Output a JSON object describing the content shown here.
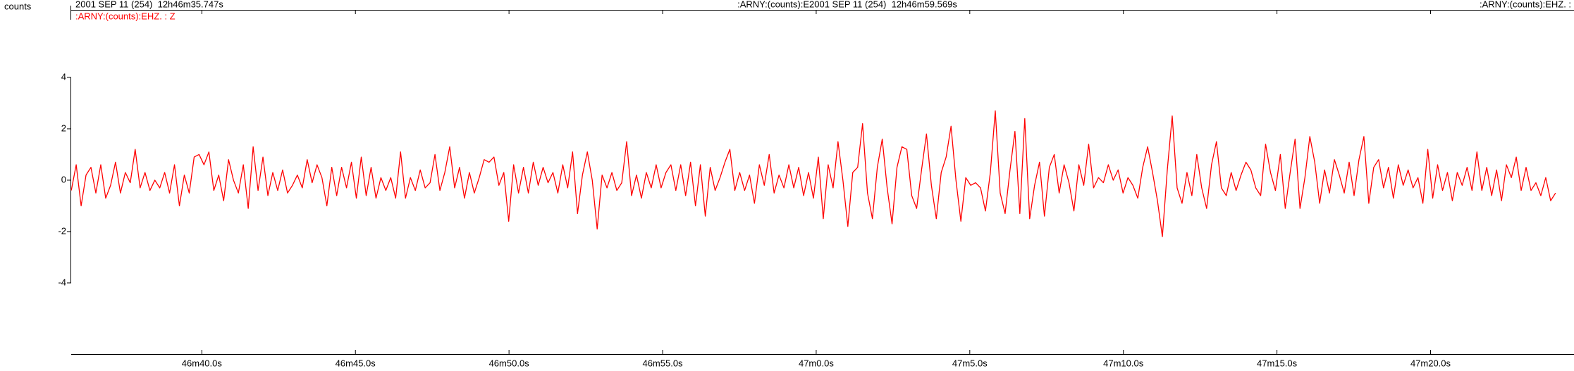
{
  "chart_data": {
    "type": "line",
    "y_label": "counts",
    "header_start": "2001 SEP 11 (254)  12h46m35.747s",
    "header_mid_channel": ":ARNY:(counts):E",
    "header_mid_time": "2001 SEP 11 (254)  12h46m59.569s",
    "header_end": ":ARNY:(counts):EHZ. : (",
    "xlim": [
      2795.747,
      2844.67
    ],
    "ylim": [
      -6.77,
      6.63
    ],
    "yticks": [
      -4,
      -2,
      0,
      2,
      4
    ],
    "xticks": [
      {
        "value": 2800,
        "label": "46m40.0s"
      },
      {
        "value": 2805,
        "label": "46m45.0s"
      },
      {
        "value": 2810,
        "label": "46m50.0s"
      },
      {
        "value": 2815,
        "label": "46m55.0s"
      },
      {
        "value": 2820,
        "label": "47m0.0s"
      },
      {
        "value": 2825,
        "label": "47m5.0s"
      },
      {
        "value": 2830,
        "label": "47m10.0s"
      },
      {
        "value": 2835,
        "label": "47m15.0s"
      },
      {
        "value": 2840,
        "label": "47m20.0s"
      }
    ],
    "x": [
      2795.75,
      2795.91,
      2796.07,
      2796.23,
      2796.39,
      2796.55,
      2796.71,
      2796.87,
      2797.03,
      2797.19,
      2797.35,
      2797.51,
      2797.67,
      2797.83,
      2797.99,
      2798.15,
      2798.31,
      2798.47,
      2798.63,
      2798.79,
      2798.95,
      2799.11,
      2799.27,
      2799.43,
      2799.59,
      2799.75,
      2799.91,
      2800.07,
      2800.23,
      2800.39,
      2800.55,
      2800.71,
      2800.87,
      2801.03,
      2801.19,
      2801.35,
      2801.51,
      2801.67,
      2801.83,
      2801.99,
      2802.15,
      2802.31,
      2802.47,
      2802.63,
      2802.79,
      2802.95,
      2803.11,
      2803.27,
      2803.43,
      2803.59,
      2803.75,
      2803.91,
      2804.07,
      2804.23,
      2804.39,
      2804.55,
      2804.71,
      2804.87,
      2805.03,
      2805.19,
      2805.35,
      2805.51,
      2805.67,
      2805.83,
      2805.99,
      2806.15,
      2806.31,
      2806.47,
      2806.63,
      2806.79,
      2806.95,
      2807.11,
      2807.27,
      2807.43,
      2807.59,
      2807.75,
      2807.91,
      2808.07,
      2808.23,
      2808.39,
      2808.55,
      2808.71,
      2808.87,
      2809.03,
      2809.19,
      2809.35,
      2809.51,
      2809.67,
      2809.83,
      2809.99,
      2810.15,
      2810.31,
      2810.47,
      2810.63,
      2810.79,
      2810.95,
      2811.11,
      2811.27,
      2811.43,
      2811.59,
      2811.75,
      2811.91,
      2812.07,
      2812.23,
      2812.39,
      2812.55,
      2812.71,
      2812.87,
      2813.03,
      2813.19,
      2813.35,
      2813.51,
      2813.67,
      2813.83,
      2813.99,
      2814.15,
      2814.31,
      2814.47,
      2814.63,
      2814.79,
      2814.95,
      2815.11,
      2815.27,
      2815.43,
      2815.59,
      2815.75,
      2815.91,
      2816.07,
      2816.23,
      2816.39,
      2816.55,
      2816.71,
      2816.87,
      2817.03,
      2817.19,
      2817.35,
      2817.51,
      2817.67,
      2817.83,
      2817.99,
      2818.15,
      2818.31,
      2818.47,
      2818.63,
      2818.79,
      2818.95,
      2819.11,
      2819.27,
      2819.43,
      2819.59,
      2819.75,
      2819.91,
      2820.07,
      2820.23,
      2820.39,
      2820.55,
      2820.71,
      2820.87,
      2821.03,
      2821.19,
      2821.35,
      2821.51,
      2821.67,
      2821.83,
      2821.99,
      2822.15,
      2822.31,
      2822.47,
      2822.63,
      2822.79,
      2822.95,
      2823.11,
      2823.27,
      2823.43,
      2823.59,
      2823.75,
      2823.91,
      2824.07,
      2824.23,
      2824.39,
      2824.55,
      2824.71,
      2824.87,
      2825.03,
      2825.19,
      2825.35,
      2825.51,
      2825.67,
      2825.83,
      2825.99,
      2826.15,
      2826.31,
      2826.47,
      2826.63,
      2826.79,
      2826.95,
      2827.11,
      2827.27,
      2827.43,
      2827.59,
      2827.75,
      2827.91,
      2828.07,
      2828.23,
      2828.39,
      2828.55,
      2828.71,
      2828.87,
      2829.03,
      2829.19,
      2829.35,
      2829.51,
      2829.67,
      2829.83,
      2829.99,
      2830.15,
      2830.31,
      2830.47,
      2830.63,
      2830.79,
      2830.95,
      2831.11,
      2831.27,
      2831.43,
      2831.59,
      2831.75,
      2831.91,
      2832.07,
      2832.23,
      2832.39,
      2832.55,
      2832.71,
      2832.87,
      2833.03,
      2833.19,
      2833.35,
      2833.51,
      2833.67,
      2833.83,
      2833.99,
      2834.15,
      2834.31,
      2834.47,
      2834.63,
      2834.79,
      2834.95,
      2835.11,
      2835.27,
      2835.43,
      2835.59,
      2835.75,
      2835.91,
      2836.07,
      2836.23,
      2836.39,
      2836.55,
      2836.71,
      2836.87,
      2837.03,
      2837.19,
      2837.35,
      2837.51,
      2837.67,
      2837.83,
      2837.99,
      2838.15,
      2838.31,
      2838.47,
      2838.63,
      2838.79,
      2838.95,
      2839.11,
      2839.27,
      2839.43,
      2839.59,
      2839.75,
      2839.91,
      2840.07,
      2840.23,
      2840.39,
      2840.55,
      2840.71,
      2840.87,
      2841.03,
      2841.19,
      2841.35,
      2841.51,
      2841.67,
      2841.83,
      2841.99,
      2842.15,
      2842.31,
      2842.47,
      2842.63,
      2842.79,
      2842.95,
      2843.11,
      2843.27,
      2843.43,
      2843.59,
      2843.75,
      2843.91,
      2844.07
    ],
    "series": [
      {
        "name": ":ARNY:(counts):EHZ. : Z",
        "color": "#ff0000",
        "values": [
          -0.4,
          0.6,
          -1.0,
          0.2,
          0.5,
          -0.5,
          0.6,
          -0.7,
          -0.2,
          0.7,
          -0.5,
          0.3,
          -0.1,
          1.2,
          -0.3,
          0.3,
          -0.4,
          0.0,
          -0.3,
          0.3,
          -0.5,
          0.6,
          -1.0,
          0.2,
          -0.5,
          0.9,
          1.0,
          0.6,
          1.1,
          -0.4,
          0.2,
          -0.8,
          0.8,
          0.0,
          -0.5,
          0.6,
          -1.1,
          1.3,
          -0.4,
          0.9,
          -0.6,
          0.3,
          -0.4,
          0.4,
          -0.5,
          -0.2,
          0.2,
          -0.3,
          0.8,
          -0.1,
          0.6,
          0.1,
          -1.0,
          0.5,
          -0.6,
          0.5,
          -0.3,
          0.7,
          -0.7,
          0.9,
          -0.6,
          0.5,
          -0.7,
          0.1,
          -0.4,
          0.1,
          -0.7,
          1.1,
          -0.7,
          0.1,
          -0.4,
          0.4,
          -0.3,
          -0.1,
          1.0,
          -0.4,
          0.3,
          1.3,
          -0.3,
          0.5,
          -0.7,
          0.3,
          -0.5,
          0.1,
          0.8,
          0.7,
          0.9,
          -0.2,
          0.3,
          -1.6,
          0.6,
          -0.5,
          0.5,
          -0.5,
          0.7,
          -0.2,
          0.5,
          -0.1,
          0.3,
          -0.5,
          0.6,
          -0.3,
          1.1,
          -1.3,
          0.2,
          1.1,
          0.0,
          -1.9,
          0.2,
          -0.3,
          0.3,
          -0.4,
          -0.1,
          1.5,
          -0.6,
          0.2,
          -0.7,
          0.3,
          -0.3,
          0.6,
          -0.3,
          0.3,
          0.6,
          -0.4,
          0.6,
          -0.6,
          0.7,
          -1.0,
          0.6,
          -1.4,
          0.5,
          -0.4,
          0.1,
          0.7,
          1.2,
          -0.4,
          0.3,
          -0.4,
          0.2,
          -0.9,
          0.6,
          -0.2,
          1.0,
          -0.5,
          0.2,
          -0.3,
          0.6,
          -0.3,
          0.5,
          -0.6,
          0.3,
          -0.7,
          0.9,
          -1.5,
          0.6,
          -0.3,
          1.5,
          0.0,
          -1.8,
          0.3,
          0.5,
          2.2,
          -0.5,
          -1.5,
          0.5,
          1.6,
          -0.3,
          -1.7,
          0.5,
          1.3,
          1.2,
          -0.6,
          -1.1,
          0.4,
          1.8,
          -0.2,
          -1.5,
          0.3,
          0.9,
          2.1,
          0.0,
          -1.6,
          0.1,
          -0.2,
          -0.1,
          -0.3,
          -1.2,
          0.3,
          2.7,
          -0.5,
          -1.3,
          0.4,
          1.9,
          -1.3,
          2.4,
          -1.5,
          -0.2,
          0.7,
          -1.4,
          0.5,
          1.0,
          -0.5,
          0.6,
          -0.1,
          -1.2,
          0.6,
          -0.2,
          1.4,
          -0.3,
          0.1,
          -0.1,
          0.6,
          0.0,
          0.4,
          -0.5,
          0.1,
          -0.2,
          -0.7,
          0.5,
          1.3,
          0.3,
          -0.8,
          -2.2,
          0.4,
          2.5,
          -0.3,
          -0.9,
          0.3,
          -0.6,
          1.0,
          -0.3,
          -1.1,
          0.6,
          1.5,
          -0.3,
          -0.6,
          0.3,
          -0.4,
          0.2,
          0.7,
          0.4,
          -0.3,
          -0.6,
          1.4,
          0.3,
          -0.4,
          1.0,
          -1.1,
          0.3,
          1.6,
          -1.1,
          0.1,
          1.7,
          0.7,
          -0.9,
          0.4,
          -0.5,
          0.8,
          0.2,
          -0.5,
          0.7,
          -0.6,
          0.8,
          1.7,
          -0.9,
          0.5,
          0.8,
          -0.3,
          0.5,
          -0.7,
          0.6,
          -0.2,
          0.4,
          -0.3,
          0.1,
          -0.9,
          1.2,
          -0.7,
          0.6,
          -0.4,
          0.3,
          -0.8,
          0.3,
          -0.2,
          0.5,
          -0.4,
          1.1,
          -0.4,
          0.5,
          -0.6,
          0.4,
          -0.8,
          0.6,
          0.1,
          0.9,
          -0.4,
          0.5,
          -0.4,
          -0.1,
          -0.6,
          0.1,
          -0.8,
          -0.5
        ]
      }
    ]
  }
}
